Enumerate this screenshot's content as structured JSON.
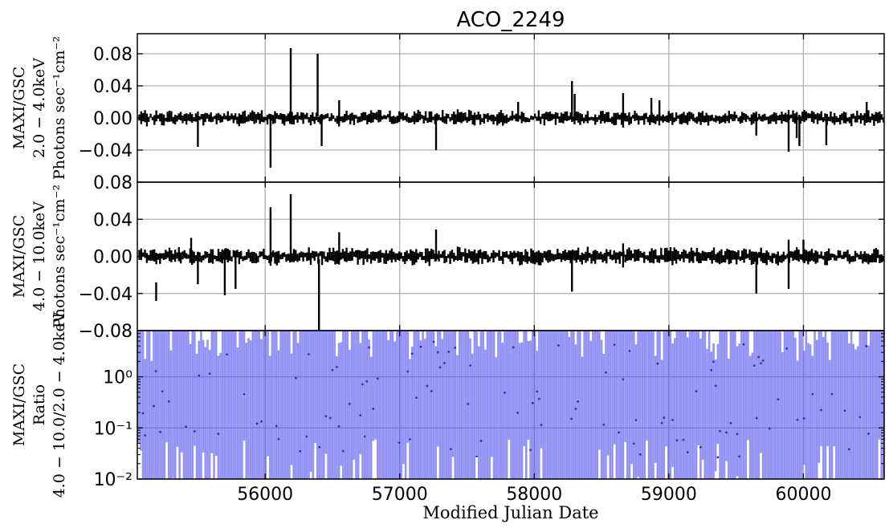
{
  "chart_data": [
    {
      "type": "scatter",
      "panel": "top",
      "title": "ACO_2249",
      "ylabel_lines": [
        "MAXI/GSC",
        "2.0 − 4.0keV",
        "Photons sec⁻¹cm⁻²"
      ],
      "xlim": [
        55050,
        60600
      ],
      "ylim": [
        -0.08,
        0.105
      ],
      "yticks": [
        -0.04,
        0.0,
        0.04,
        0.08
      ],
      "ytick_labels": [
        "−0.04",
        "0.00",
        "0.04",
        "0.08"
      ],
      "grid": true,
      "error_bars": [
        {
          "x": 55500,
          "y": 0.0,
          "lo": -0.036,
          "hi": 0.008
        },
        {
          "x": 56040,
          "y": -0.01,
          "lo": -0.062,
          "hi": 0.005
        },
        {
          "x": 56190,
          "y": 0.01,
          "lo": -0.002,
          "hi": 0.087
        },
        {
          "x": 56390,
          "y": 0.01,
          "lo": 0.002,
          "hi": 0.08
        },
        {
          "x": 56420,
          "y": 0.0,
          "lo": -0.035,
          "hi": 0.005
        },
        {
          "x": 56550,
          "y": 0.0,
          "lo": -0.006,
          "hi": 0.022
        },
        {
          "x": 57270,
          "y": 0.0,
          "lo": -0.04,
          "hi": 0.005
        },
        {
          "x": 57880,
          "y": 0.0,
          "lo": -0.004,
          "hi": 0.02
        },
        {
          "x": 58280,
          "y": 0.01,
          "lo": -0.005,
          "hi": 0.046
        },
        {
          "x": 58300,
          "y": 0.0,
          "lo": -0.003,
          "hi": 0.03
        },
        {
          "x": 58660,
          "y": 0.0,
          "lo": -0.012,
          "hi": 0.031
        },
        {
          "x": 58870,
          "y": 0.0,
          "lo": -0.005,
          "hi": 0.025
        },
        {
          "x": 58930,
          "y": 0.0,
          "lo": -0.004,
          "hi": 0.022
        },
        {
          "x": 59650,
          "y": 0.0,
          "lo": -0.022,
          "hi": 0.008
        },
        {
          "x": 59890,
          "y": 0.0,
          "lo": -0.042,
          "hi": 0.01
        },
        {
          "x": 59950,
          "y": 0.0,
          "lo": -0.025,
          "hi": 0.005
        },
        {
          "x": 59970,
          "y": 0.0,
          "lo": -0.035,
          "hi": 0.004
        },
        {
          "x": 60170,
          "y": 0.0,
          "lo": -0.034,
          "hi": 0.004
        },
        {
          "x": 60470,
          "y": 0.0,
          "lo": -0.006,
          "hi": 0.02
        }
      ]
    },
    {
      "type": "scatter",
      "panel": "middle",
      "ylabel_lines": [
        "MAXI/GSC",
        "4.0 − 10.0keV",
        "Photons sec⁻¹cm⁻²"
      ],
      "xlim": [
        55050,
        60600
      ],
      "ylim": [
        -0.08,
        0.08
      ],
      "yticks": [
        -0.08,
        -0.04,
        0.0,
        0.04,
        0.08
      ],
      "ytick_labels": [
        "−0.08",
        "−0.04",
        "0.00",
        "0.04",
        "0.08"
      ],
      "grid": true,
      "error_bars": [
        {
          "x": 55190,
          "y": -0.04,
          "lo": -0.048,
          "hi": -0.028
        },
        {
          "x": 55450,
          "y": 0.0,
          "lo": -0.006,
          "hi": 0.02
        },
        {
          "x": 55500,
          "y": 0.0,
          "lo": -0.03,
          "hi": 0.005
        },
        {
          "x": 55700,
          "y": 0.0,
          "lo": -0.042,
          "hi": 0.008
        },
        {
          "x": 55780,
          "y": 0.0,
          "lo": -0.035,
          "hi": 0.005
        },
        {
          "x": 56040,
          "y": 0.02,
          "lo": -0.01,
          "hi": 0.053
        },
        {
          "x": 56190,
          "y": 0.03,
          "lo": -0.002,
          "hi": 0.067
        },
        {
          "x": 56400,
          "y": -0.04,
          "lo": -0.08,
          "hi": -0.003
        },
        {
          "x": 56550,
          "y": 0.0,
          "lo": -0.005,
          "hi": 0.026
        },
        {
          "x": 57270,
          "y": 0.01,
          "lo": -0.005,
          "hi": 0.029
        },
        {
          "x": 58280,
          "y": 0.0,
          "lo": -0.038,
          "hi": 0.005
        },
        {
          "x": 58660,
          "y": 0.0,
          "lo": -0.012,
          "hi": 0.014
        },
        {
          "x": 59650,
          "y": 0.0,
          "lo": -0.04,
          "hi": 0.005
        },
        {
          "x": 59890,
          "y": 0.0,
          "lo": -0.035,
          "hi": 0.018
        },
        {
          "x": 60000,
          "y": 0.0,
          "lo": -0.006,
          "hi": 0.018
        }
      ]
    },
    {
      "type": "scatter",
      "panel": "bottom",
      "ylabel_lines": [
        "MAXI/GSC",
        "Ratio",
        "4.0 − 10.0/2.0 − 4.0keV"
      ],
      "xlabel": "Modified Julian Date",
      "xlim": [
        55050,
        60600
      ],
      "xticks": [
        56000,
        57000,
        58000,
        59000,
        60000
      ],
      "xtick_labels": [
        "56000",
        "57000",
        "58000",
        "59000",
        "60000"
      ],
      "yscale": "log",
      "ylim": [
        0.01,
        8
      ],
      "yticks": [
        0.01,
        0.1,
        1
      ],
      "ytick_labels": [
        "10⁻²",
        "10⁻¹",
        "10⁰"
      ],
      "grid": true,
      "series_color": "#5050f0",
      "note_values": "dense ratio error bars spanning nearly the full y range at ~30-day cadence"
    }
  ]
}
